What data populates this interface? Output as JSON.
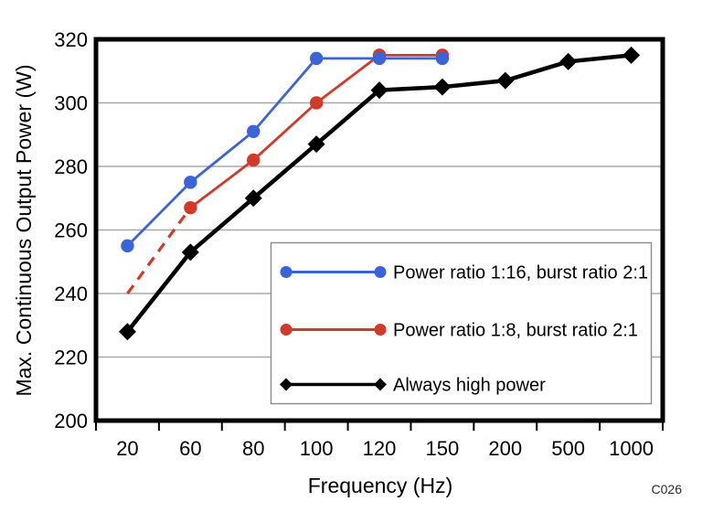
{
  "figure": {
    "annotation": "C026",
    "background_color": "#ffffff"
  },
  "chart_data": {
    "type": "line",
    "title": "",
    "xlabel": "Frequency (Hz)",
    "ylabel": "Max. Continuous Output Power (W)",
    "x_axis_type": "categorical",
    "categories": [
      "20",
      "60",
      "80",
      "100",
      "120",
      "150",
      "200",
      "500",
      "1000"
    ],
    "ylim": [
      200,
      320
    ],
    "y_ticks": [
      200,
      220,
      240,
      260,
      280,
      300,
      320
    ],
    "grid": "horizontal",
    "grid_color": "#A8A8A8",
    "legend_position": "inside-bottom-right",
    "series": [
      {
        "name": "Power ratio 1:16, burst ratio 2:1",
        "color": "#3B64D8",
        "marker": "circle",
        "line_style": "solid",
        "draw_order": 2,
        "x": [
          "20",
          "60",
          "80",
          "100",
          "120",
          "150"
        ],
        "values": [
          255,
          275,
          291,
          314,
          314,
          314
        ]
      },
      {
        "name": "Power ratio 1:8, burst ratio 2:1",
        "color": "#D13A28",
        "marker": "circle",
        "line_style": "solid",
        "draw_order": 1,
        "x": [
          "20",
          "60",
          "80",
          "100",
          "120",
          "150"
        ],
        "values": [
          240,
          267,
          282,
          300,
          315,
          315
        ],
        "dashed_until_index": 1,
        "markers_from_index": 1
      },
      {
        "name": "Always high power",
        "color": "#000000",
        "marker": "diamond",
        "line_style": "solid",
        "draw_order": 3,
        "x": [
          "20",
          "60",
          "80",
          "100",
          "120",
          "150",
          "200",
          "500",
          "1000"
        ],
        "values": [
          228,
          253,
          270,
          287,
          304,
          305,
          307,
          313,
          315
        ]
      }
    ]
  }
}
